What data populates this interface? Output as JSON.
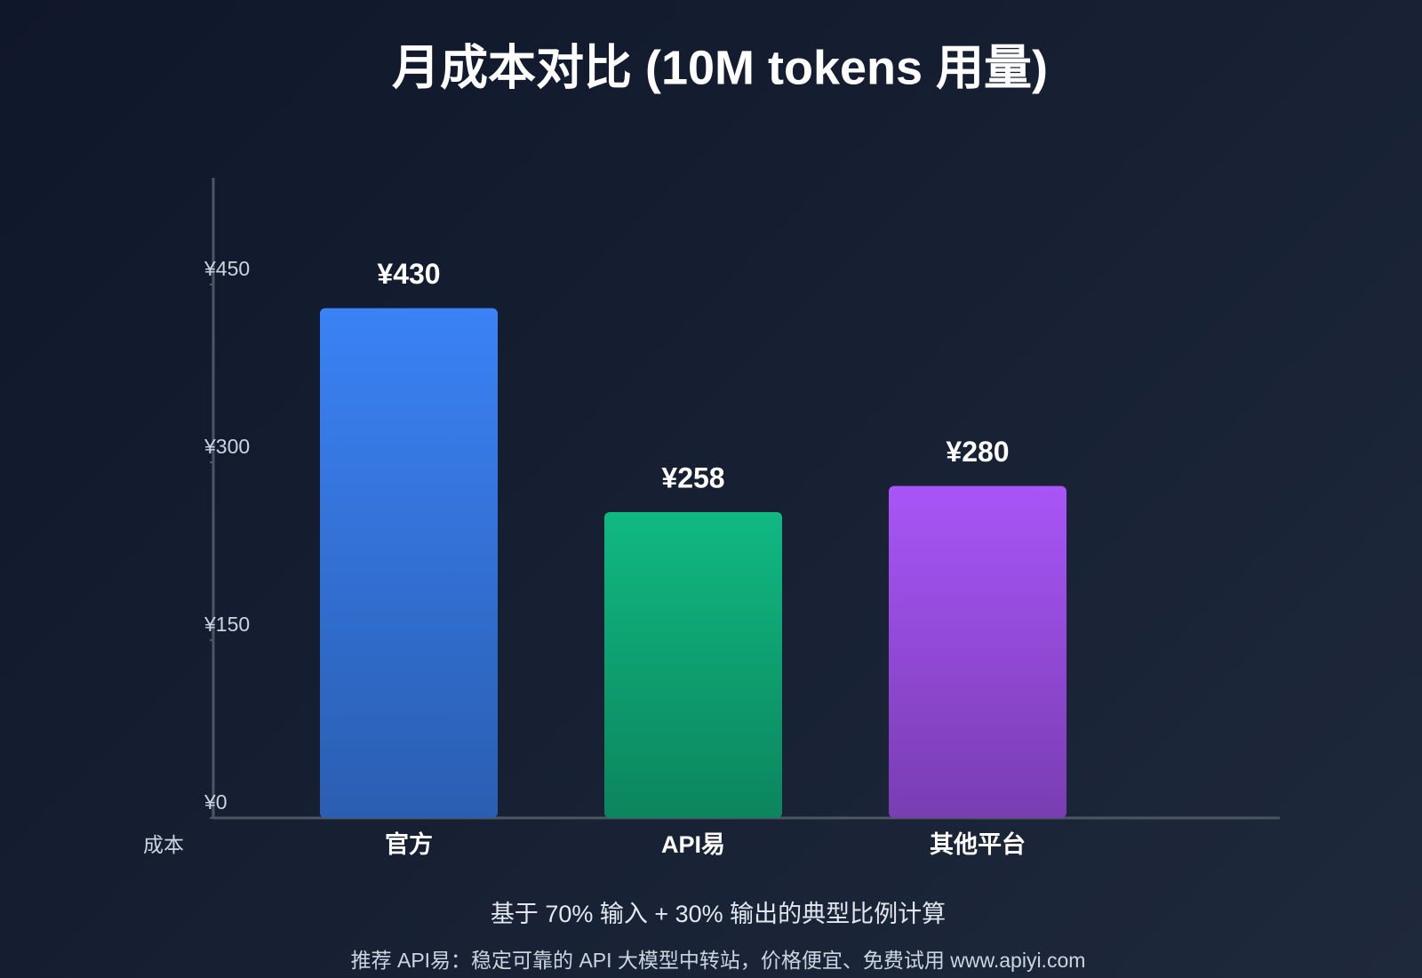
{
  "chart_data": {
    "type": "bar",
    "title": "月成本对比 (10M tokens 用量)",
    "y_label": "成本",
    "categories": [
      "官方",
      "API易",
      "其他平台"
    ],
    "values": [
      430,
      258,
      280
    ],
    "value_labels": [
      "¥430",
      "¥258",
      "¥280"
    ],
    "colors": [
      "#3b82f6",
      "#10b981",
      "#a855f7"
    ],
    "ylim": [
      0,
      540
    ],
    "yticks": [
      {
        "value": 0,
        "label": "¥0"
      },
      {
        "value": 150,
        "label": "¥150"
      },
      {
        "value": 300,
        "label": "¥300"
      },
      {
        "value": 450,
        "label": "¥450"
      }
    ],
    "note": "基于 70% 输入 + 30% 输出的典型比例计算",
    "footer": "推荐 API易：稳定可靠的 API 大模型中转站，价格便宜、免费试用 www.apiyi.com"
  }
}
